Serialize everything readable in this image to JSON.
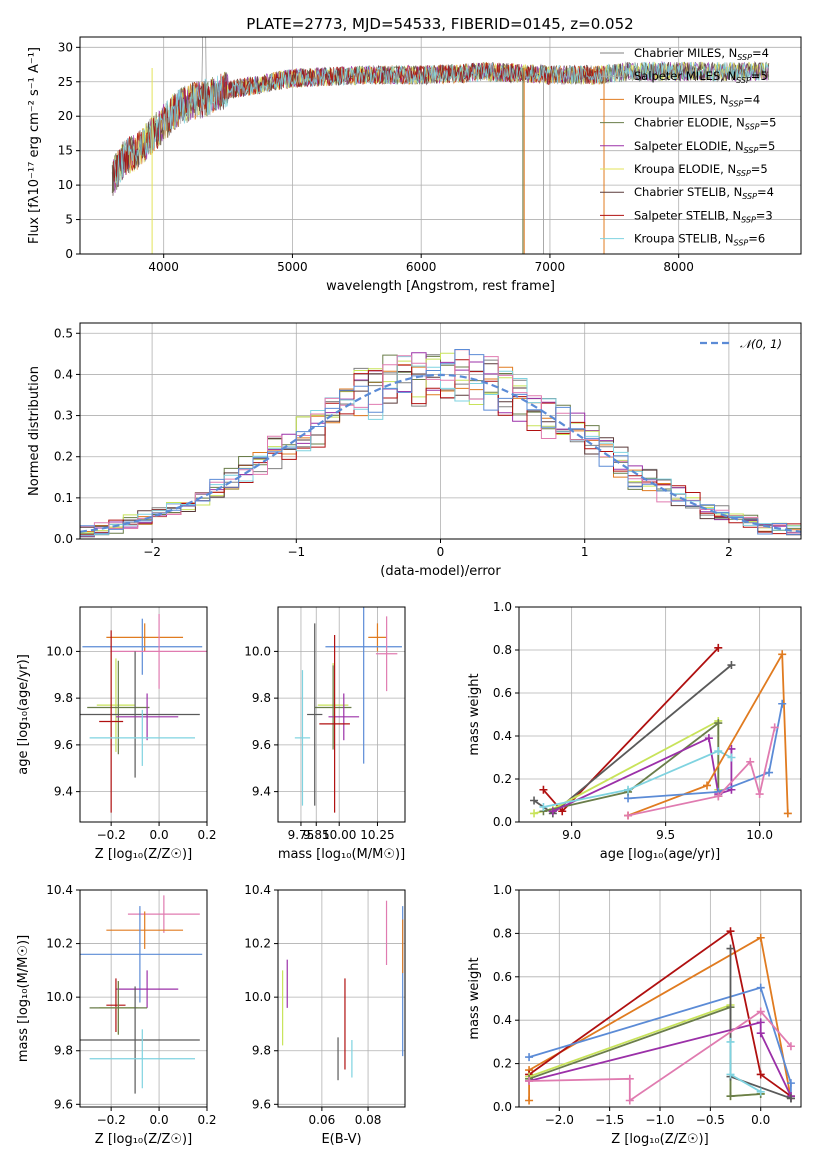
{
  "chart_data": [
    {
      "type": "line",
      "title": "PLATE=2773, MJD=54533, FIBERID=0145, z=0.052",
      "xlabel": "wavelength [Angstrom, rest frame]",
      "ylabel": "Flux [fλ10⁻¹⁷ erg cm⁻² s⁻¹ A⁻¹]",
      "xlim": [
        3350,
        8950
      ],
      "ylim": [
        0,
        31.5
      ],
      "xticks": [
        "4000",
        "5000",
        "6000",
        "7000",
        "8000"
      ],
      "yticks": [
        "0",
        "5",
        "10",
        "15",
        "20",
        "25",
        "30"
      ],
      "legend_position": "upper-right",
      "continuum": {
        "x": [
          3600,
          3700,
          3800,
          3900,
          4000,
          4100,
          4200,
          4300,
          4500,
          4700,
          5000,
          5300,
          5600,
          6000,
          6300,
          6500,
          6700,
          7000,
          7200,
          7400,
          7600,
          8000,
          8500,
          8800
        ],
        "y": [
          11,
          14,
          15,
          17,
          19,
          21,
          22,
          22.5,
          23.8,
          24.5,
          25.5,
          25.8,
          26,
          26,
          26.2,
          26.5,
          26.3,
          26,
          26,
          26,
          26.5,
          26.5,
          26.5,
          26.5
        ]
      },
      "series": [
        {
          "name": "Chabrier MILES, N",
          "sub": "SSP",
          "suffix": "=4",
          "color": "#808080"
        },
        {
          "name": "Salpeter MILES, N",
          "sub": "SSP",
          "suffix": "=5",
          "color": "#a9a9a9"
        },
        {
          "name": "Kroupa MILES, N",
          "sub": "SSP",
          "suffix": "=4",
          "color": "#e07b20"
        },
        {
          "name": "Chabrier ELODIE, N",
          "sub": "SSP",
          "suffix": "=5",
          "color": "#6a7d4a"
        },
        {
          "name": "Salpeter ELODIE, N",
          "sub": "SSP",
          "suffix": "=5",
          "color": "#9b30a8"
        },
        {
          "name": "Kroupa ELODIE, N",
          "sub": "SSP",
          "suffix": "=5",
          "color": "#e3e35a"
        },
        {
          "name": "Chabrier STELIB, N",
          "sub": "SSP",
          "suffix": "=4",
          "color": "#5a3a3a"
        },
        {
          "name": "Salpeter STELIB, N",
          "sub": "SSP",
          "suffix": "=3",
          "color": "#b01010"
        },
        {
          "name": "Kroupa STELIB, N",
          "sub": "SSP",
          "suffix": "=6",
          "color": "#7fd3e0"
        }
      ]
    },
    {
      "type": "histogram",
      "xlabel": "(data-model)/error",
      "ylabel": "Normed distribution",
      "xlim": [
        -2.5,
        2.5
      ],
      "ylim": [
        0,
        0.525
      ],
      "xticks": [
        -2,
        -1,
        0,
        1,
        2
      ],
      "yticks": [
        0.0,
        0.1,
        0.2,
        0.3,
        0.4,
        0.5
      ],
      "legend": {
        "label": "𝒩(0, 1)",
        "color": "#5b8bd6",
        "position": "upper-right"
      },
      "colors": [
        "#808080",
        "#e07b20",
        "#6a7d4a",
        "#9b30a8",
        "#c8e35a",
        "#5a3a3a",
        "#b01010",
        "#7fd3e0",
        "#e07bb0",
        "#5b8bd6"
      ]
    },
    {
      "type": "scatter",
      "xlabel": "Z [log₁₀(Z/Z☉)]",
      "ylabel": "age  [log₁₀(age/yr)]",
      "xlim": [
        -0.33,
        0.2
      ],
      "ylim": [
        9.27,
        10.19
      ],
      "xticks": [
        -0.2,
        0.0,
        0.2
      ],
      "yticks": [
        9.4,
        9.6,
        9.8,
        10.0
      ],
      "points": [
        {
          "x": -0.06,
          "y": 10.06,
          "xerr": 0.16,
          "yerr": 0.06,
          "color": "#e07b20"
        },
        {
          "x": -0.07,
          "y": 10.02,
          "xerr": 0.25,
          "yerr": 0.12,
          "color": "#5b8bd6"
        },
        {
          "x": 0.0,
          "y": 10.0,
          "xerr": 0.2,
          "yerr": 0.16,
          "color": "#e07bb0"
        },
        {
          "x": -0.18,
          "y": 9.77,
          "xerr": 0.08,
          "yerr": 0.2,
          "color": "#c8e35a"
        },
        {
          "x": -0.17,
          "y": 9.76,
          "xerr": 0.13,
          "yerr": 0.2,
          "color": "#6a7d4a"
        },
        {
          "x": -0.1,
          "y": 9.73,
          "xerr": 0.27,
          "yerr": 0.27,
          "color": "#5a5a5a"
        },
        {
          "x": -0.05,
          "y": 9.72,
          "xerr": 0.13,
          "yerr": 0.1,
          "color": "#9b30a8"
        },
        {
          "x": -0.2,
          "y": 9.7,
          "xerr": 0.05,
          "yerr": 0.39,
          "color": "#b01010"
        },
        {
          "x": -0.07,
          "y": 9.63,
          "xerr": 0.22,
          "yerr": 0.12,
          "color": "#7fd3e0"
        }
      ]
    },
    {
      "type": "scatter",
      "xlabel": "mass [log₁₀(M/M☉)]",
      "ylabel": "",
      "xlim": [
        9.6,
        10.43
      ],
      "ylim": [
        9.27,
        10.19
      ],
      "xticks": [
        9.75,
        9.85,
        10.0,
        10.25
      ],
      "yticks": [
        9.4,
        9.6,
        9.8,
        10.0
      ],
      "points": [
        {
          "x": 10.25,
          "y": 10.06,
          "xerr": 0.06,
          "yerr": 0.06,
          "color": "#e07b20"
        },
        {
          "x": 10.16,
          "y": 10.02,
          "xerr": 0.25,
          "yerr": 0.5,
          "color": "#5b8bd6"
        },
        {
          "x": 10.31,
          "y": 9.99,
          "xerr": 0.07,
          "yerr": 0.16,
          "color": "#e07bb0"
        },
        {
          "x": 9.96,
          "y": 9.77,
          "xerr": 0.1,
          "yerr": 0.18,
          "color": "#c8e35a"
        },
        {
          "x": 9.96,
          "y": 9.76,
          "xerr": 0.12,
          "yerr": 0.18,
          "color": "#6a7d4a"
        },
        {
          "x": 9.84,
          "y": 9.73,
          "xerr": 0.05,
          "yerr": 0.39,
          "color": "#5a5a5a"
        },
        {
          "x": 10.03,
          "y": 9.72,
          "xerr": 0.1,
          "yerr": 0.1,
          "color": "#9b30a8"
        },
        {
          "x": 9.97,
          "y": 9.69,
          "xerr": 0.1,
          "yerr": 0.38,
          "color": "#b01010"
        },
        {
          "x": 9.76,
          "y": 9.63,
          "xerr": 0.05,
          "yerr": 0.29,
          "color": "#7fd3e0"
        }
      ]
    },
    {
      "type": "line",
      "xlabel": "age  [log₁₀(age/yr)]",
      "ylabel": "mass weight",
      "xlim": [
        8.72,
        10.22
      ],
      "ylim": [
        0,
        1.0
      ],
      "xticks": [
        9.0,
        9.5,
        10.0
      ],
      "yticks": [
        0.0,
        0.2,
        0.4,
        0.6,
        0.8,
        1.0
      ],
      "series": [
        {
          "color": "#b01010",
          "x": [
            8.85,
            8.95,
            9.78
          ],
          "y": [
            0.15,
            0.05,
            0.81
          ]
        },
        {
          "color": "#5a5a5a",
          "x": [
            8.8,
            8.9,
            9.85
          ],
          "y": [
            0.1,
            0.04,
            0.73
          ]
        },
        {
          "color": "#c8e35a",
          "x": [
            8.8,
            8.9,
            9.78,
            9.78
          ],
          "y": [
            0.04,
            0.06,
            0.47,
            0.15
          ]
        },
        {
          "color": "#6a7d4a",
          "x": [
            8.85,
            9.3,
            9.78,
            9.78
          ],
          "y": [
            0.05,
            0.14,
            0.46,
            0.12
          ]
        },
        {
          "color": "#9b30a8",
          "x": [
            8.9,
            9.73,
            9.78,
            9.85,
            9.85
          ],
          "y": [
            0.05,
            0.39,
            0.13,
            0.15,
            0.34
          ]
        },
        {
          "color": "#7fd3e0",
          "x": [
            8.85,
            9.3,
            9.78,
            9.85
          ],
          "y": [
            0.07,
            0.15,
            0.33,
            0.3
          ]
        },
        {
          "color": "#e07b20",
          "x": [
            9.3,
            9.72,
            10.12,
            10.15
          ],
          "y": [
            0.03,
            0.17,
            0.78,
            0.04
          ]
        },
        {
          "color": "#5b8bd6",
          "x": [
            9.3,
            9.78,
            10.05,
            10.12
          ],
          "y": [
            0.11,
            0.14,
            0.23,
            0.55
          ]
        },
        {
          "color": "#e07bb0",
          "x": [
            9.3,
            9.78,
            9.95,
            10.0,
            10.08
          ],
          "y": [
            0.03,
            0.12,
            0.28,
            0.13,
            0.44
          ]
        }
      ]
    },
    {
      "type": "scatter",
      "xlabel": "Z [log₁₀(Z/Z☉)]",
      "ylabel": "mass [log₁₀(M/M☉)]",
      "xlim": [
        -0.33,
        0.2
      ],
      "ylim": [
        9.59,
        10.4
      ],
      "xticks": [
        -0.2,
        0.0,
        0.2
      ],
      "yticks": [
        9.6,
        9.8,
        10.0,
        10.2,
        10.4
      ],
      "points": [
        {
          "x": 0.02,
          "y": 10.31,
          "xerr": 0.15,
          "yerr": 0.07,
          "color": "#e07bb0"
        },
        {
          "x": -0.06,
          "y": 10.25,
          "xerr": 0.16,
          "yerr": 0.07,
          "color": "#e07b20"
        },
        {
          "x": -0.08,
          "y": 10.16,
          "xerr": 0.26,
          "yerr": 0.18,
          "color": "#5b8bd6"
        },
        {
          "x": -0.05,
          "y": 10.03,
          "xerr": 0.13,
          "yerr": 0.07,
          "color": "#9b30a8"
        },
        {
          "x": -0.18,
          "y": 9.97,
          "xerr": 0.04,
          "yerr": 0.1,
          "color": "#b01010"
        },
        {
          "x": -0.17,
          "y": 9.96,
          "xerr": 0.08,
          "yerr": 0.1,
          "color": "#c8e35a"
        },
        {
          "x": -0.17,
          "y": 9.96,
          "xerr": 0.12,
          "yerr": 0.1,
          "color": "#6a7d4a"
        },
        {
          "x": -0.1,
          "y": 9.84,
          "xerr": 0.27,
          "yerr": 0.2,
          "color": "#5a5a5a"
        },
        {
          "x": -0.07,
          "y": 9.77,
          "xerr": 0.22,
          "yerr": 0.11,
          "color": "#7fd3e0"
        }
      ]
    },
    {
      "type": "scatter",
      "xlabel": "E(B-V)",
      "ylabel": "",
      "xlim": [
        0.041,
        0.096
      ],
      "ylim": [
        9.59,
        10.4
      ],
      "xticks": [
        0.06,
        0.08
      ],
      "yticks": [
        9.6,
        9.8,
        10.0,
        10.2,
        10.4
      ],
      "points": [
        {
          "x": 0.045,
          "y": 10.05,
          "yerr": 0.09,
          "color": "#9b30a8"
        },
        {
          "x": 0.043,
          "y": 9.96,
          "yerr": 0.14,
          "color": "#c8e35a"
        },
        {
          "x": 0.067,
          "y": 9.77,
          "yerr": 0.08,
          "color": "#5a5a5a"
        },
        {
          "x": 0.07,
          "y": 9.9,
          "yerr": 0.17,
          "color": "#b01010"
        },
        {
          "x": 0.073,
          "y": 9.77,
          "yerr": 0.07,
          "color": "#7fd3e0"
        },
        {
          "x": 0.088,
          "y": 10.24,
          "yerr": 0.12,
          "color": "#e07bb0"
        },
        {
          "x": 0.095,
          "y": 10.06,
          "yerr": 0.28,
          "color": "#5b8bd6"
        },
        {
          "x": 0.095,
          "y": 10.19,
          "yerr": 0.1,
          "color": "#e07b20"
        }
      ]
    },
    {
      "type": "line",
      "xlabel": "Z [log₁₀(Z/Z☉)]",
      "ylabel": "mass weight",
      "xlim": [
        -2.4,
        0.4
      ],
      "ylim": [
        0,
        1.0
      ],
      "xticks": [
        "−2.0",
        "−1.5",
        "−1.0",
        "−0.5",
        "0.0"
      ],
      "xtick_values": [
        -2.0,
        -1.5,
        -1.0,
        -0.5,
        0.0
      ],
      "yticks": [
        0.0,
        0.2,
        0.4,
        0.6,
        0.8,
        1.0
      ],
      "series": [
        {
          "color": "#e07b20",
          "x": [
            -2.3,
            -2.3,
            0.0,
            0.3,
            0.3
          ],
          "y": [
            0.03,
            0.17,
            0.78,
            0.04,
            0.04
          ]
        },
        {
          "color": "#b01010",
          "x": [
            -2.3,
            -0.3,
            0.0,
            0.3
          ],
          "y": [
            0.15,
            0.81,
            0.15,
            0.05
          ]
        },
        {
          "color": "#5b8bd6",
          "x": [
            -2.3,
            0.0,
            0.3,
            0.3
          ],
          "y": [
            0.23,
            0.55,
            0.11,
            0.04
          ]
        },
        {
          "color": "#c8e35a",
          "x": [
            -2.3,
            -0.3,
            -0.3,
            0.0
          ],
          "y": [
            0.14,
            0.47,
            0.05,
            0.06
          ]
        },
        {
          "color": "#6a7d4a",
          "x": [
            -2.3,
            -0.3,
            -0.3,
            0.0
          ],
          "y": [
            0.13,
            0.46,
            0.05,
            0.06
          ]
        },
        {
          "color": "#9b30a8",
          "x": [
            -2.3,
            0.0,
            0.0,
            0.3
          ],
          "y": [
            0.12,
            0.39,
            0.34,
            0.05
          ]
        },
        {
          "color": "#5a5a5a",
          "x": [
            -0.3,
            -0.3,
            0.3
          ],
          "y": [
            0.73,
            0.14,
            0.04
          ]
        },
        {
          "color": "#7fd3e0",
          "x": [
            -0.3,
            -0.3,
            0.0
          ],
          "y": [
            0.3,
            0.15,
            0.07
          ]
        },
        {
          "color": "#e07bb0",
          "x": [
            -2.3,
            -1.3,
            -1.3,
            0.0,
            0.3
          ],
          "y": [
            0.12,
            0.13,
            0.03,
            0.44,
            0.28
          ]
        }
      ]
    }
  ]
}
